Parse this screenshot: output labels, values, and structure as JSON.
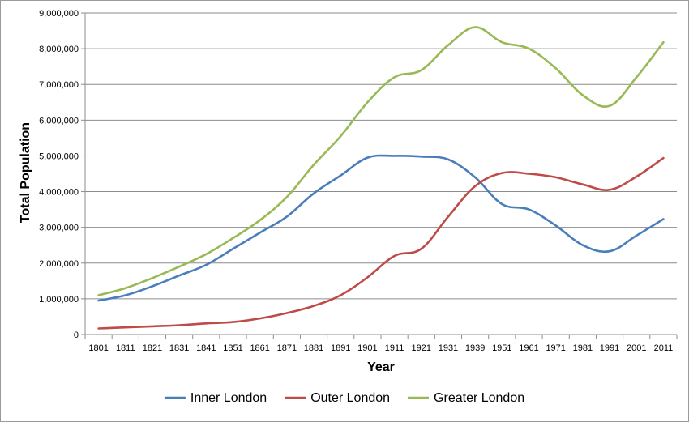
{
  "chart_data": {
    "type": "line",
    "title": "",
    "xlabel": "Year",
    "ylabel": "Total Population",
    "ylim": [
      0,
      9000000
    ],
    "y_ticks": [
      "0",
      "1,000,000",
      "2,000,000",
      "3,000,000",
      "4,000,000",
      "5,000,000",
      "6,000,000",
      "7,000,000",
      "8,000,000",
      "9,000,000"
    ],
    "categories": [
      "1801",
      "1811",
      "1821",
      "1831",
      "1841",
      "1851",
      "1861",
      "1871",
      "1881",
      "1891",
      "1901",
      "1911",
      "1921",
      "1931",
      "1939",
      "1951",
      "1961",
      "1971",
      "1981",
      "1991",
      "2001",
      "2011"
    ],
    "grid": "horizontal",
    "legend_position": "bottom",
    "series": [
      {
        "name": "Inner London",
        "color": "#4a7ebb",
        "values": [
          950000,
          1100000,
          1350000,
          1650000,
          1950000,
          2400000,
          2850000,
          3300000,
          3950000,
          4450000,
          4950000,
          5000000,
          4980000,
          4900000,
          4400000,
          3650000,
          3500000,
          3050000,
          2500000,
          2330000,
          2770000,
          3230000
        ]
      },
      {
        "name": "Outer London",
        "color": "#be4b48",
        "values": [
          170000,
          200000,
          230000,
          260000,
          310000,
          350000,
          450000,
          600000,
          800000,
          1100000,
          1600000,
          2200000,
          2400000,
          3300000,
          4150000,
          4520000,
          4500000,
          4400000,
          4200000,
          4050000,
          4420000,
          4940000
        ]
      },
      {
        "name": "Greater London",
        "color": "#98b954",
        "values": [
          1100000,
          1300000,
          1580000,
          1900000,
          2250000,
          2700000,
          3200000,
          3850000,
          4750000,
          5550000,
          6500000,
          7200000,
          7400000,
          8100000,
          8600000,
          8180000,
          8000000,
          7450000,
          6700000,
          6400000,
          7200000,
          8180000
        ]
      }
    ]
  }
}
